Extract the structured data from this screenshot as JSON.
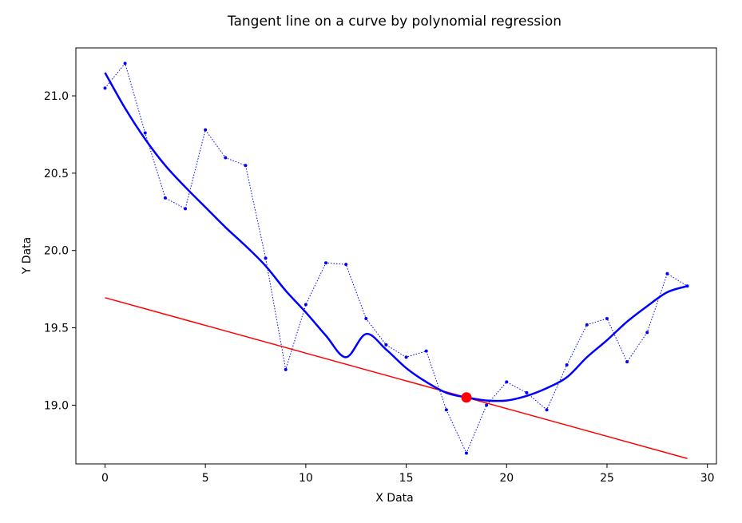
{
  "chart_data": {
    "type": "line",
    "title": "Tangent line on a curve by polynomial regression",
    "xlabel": "X Data",
    "ylabel": "Y Data",
    "xlim": [
      -1.45,
      30.45
    ],
    "ylim": [
      18.62,
      21.31
    ],
    "xticks": [
      0,
      5,
      10,
      15,
      20,
      25,
      30
    ],
    "yticks": [
      19.0,
      19.5,
      20.0,
      20.5,
      21.0
    ],
    "grid": false,
    "series": [
      {
        "style": "dotted-markers",
        "color": "#0000ff",
        "x": [
          0,
          1,
          2,
          3,
          4,
          5,
          6,
          7,
          8,
          9,
          10,
          11,
          12,
          13,
          14,
          15,
          16,
          17,
          18,
          19,
          20,
          21,
          22,
          23,
          24,
          25,
          26,
          27,
          28,
          29
        ],
        "y": [
          21.05,
          21.21,
          20.76,
          20.34,
          20.27,
          20.78,
          20.6,
          20.55,
          19.95,
          19.23,
          19.65,
          19.92,
          19.91,
          19.56,
          19.39,
          19.31,
          19.35,
          18.97,
          18.69,
          19.0,
          19.15,
          19.08,
          18.97,
          19.26,
          19.52,
          19.56,
          19.28,
          19.47,
          19.85,
          19.77
        ]
      },
      {
        "style": "fit-curve",
        "color": "#0000ff",
        "x": [
          0,
          1,
          2,
          3,
          4,
          5,
          6,
          7,
          8,
          9,
          10,
          11,
          12,
          13,
          14,
          15,
          16,
          17,
          18,
          19,
          20,
          21,
          22,
          23,
          24,
          25,
          26,
          27,
          28,
          29
        ],
        "y": [
          21.15,
          20.92,
          20.72,
          20.55,
          20.41,
          20.28,
          20.15,
          20.03,
          19.9,
          19.74,
          19.6,
          19.45,
          19.31,
          19.46,
          19.36,
          19.24,
          19.15,
          19.08,
          19.05,
          19.03,
          19.03,
          19.06,
          19.11,
          19.18,
          19.31,
          19.42,
          19.54,
          19.64,
          19.73,
          19.77
        ]
      },
      {
        "style": "tangent-line",
        "color": "#ff0000",
        "x": [
          0,
          29
        ],
        "y": [
          19.695,
          18.655
        ]
      }
    ],
    "tangent_point": {
      "x": 18,
      "y": 19.05,
      "color": "#ff0000"
    }
  }
}
